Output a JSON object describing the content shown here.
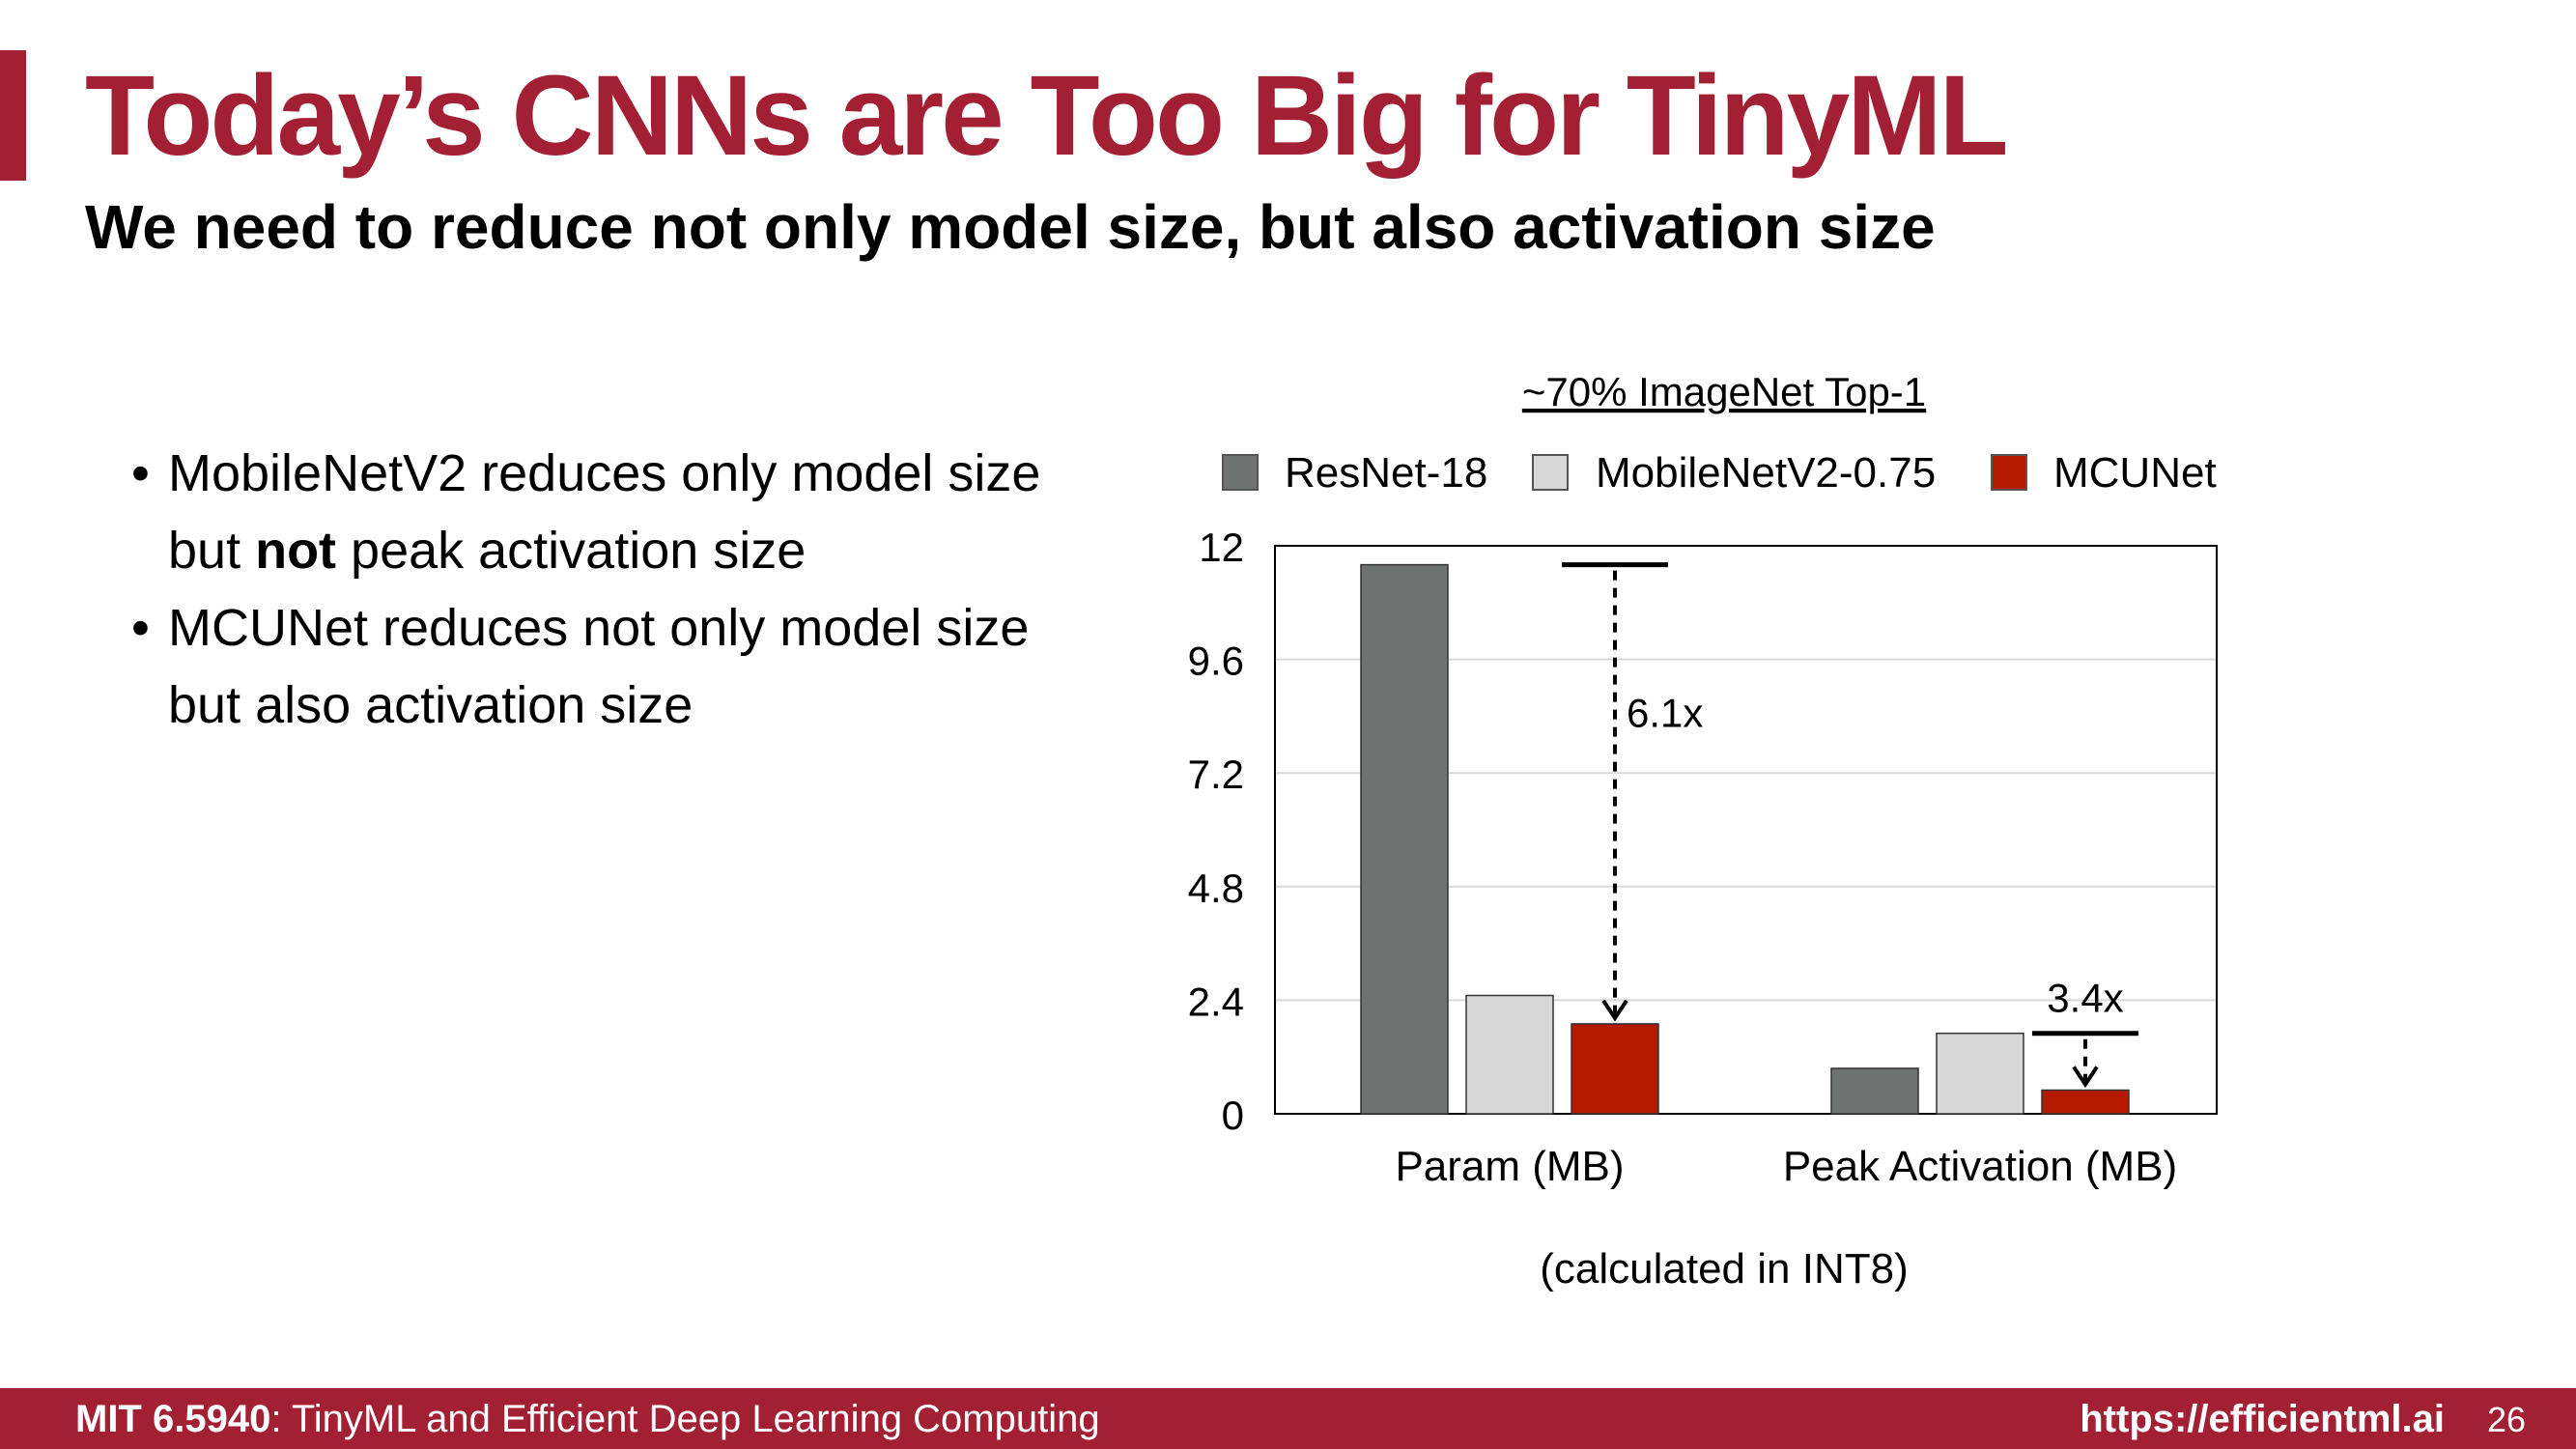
{
  "slide": {
    "title": "Today’s CNNs are Too Big for TinyML",
    "subtitle": "We need to reduce not only model size, but also activation size",
    "bullets": [
      {
        "pre": "MobileNetV2 reduces only model size but ",
        "bold": "not",
        "post": " peak activation size"
      },
      {
        "pre": "MCUNet reduces not only model size but also activation size",
        "bold": "",
        "post": ""
      }
    ]
  },
  "chart_data": {
    "type": "bar",
    "title": "~70% ImageNet Top-1",
    "categories": [
      "Param (MB)",
      "Peak Activation (MB)"
    ],
    "series": [
      {
        "name": "ResNet-18",
        "color": "#6e7371",
        "values": [
          11.6,
          0.96
        ]
      },
      {
        "name": "MobileNetV2-0.75",
        "color": "#d8d8d8",
        "values": [
          2.5,
          1.7
        ]
      },
      {
        "name": "MCUNet",
        "color": "#b51a00",
        "values": [
          1.9,
          0.5
        ]
      }
    ],
    "ylim": [
      0,
      12
    ],
    "yticks": [
      "0",
      "2.4",
      "4.8",
      "7.2",
      "9.6",
      "12"
    ],
    "grid": true,
    "legend": "top",
    "annotations": [
      {
        "text": "6.1x",
        "category": 0,
        "from": 11.6,
        "to": 1.9
      },
      {
        "text": "3.4x",
        "category": 1,
        "from": 1.7,
        "to": 0.5
      }
    ],
    "footnote": "(calculated in INT8)"
  },
  "footer": {
    "course": "MIT 6.5940",
    "course_title": ": TinyML and Efficient Deep Learning Computing",
    "url": "https://efficientml.ai",
    "page": "26"
  }
}
